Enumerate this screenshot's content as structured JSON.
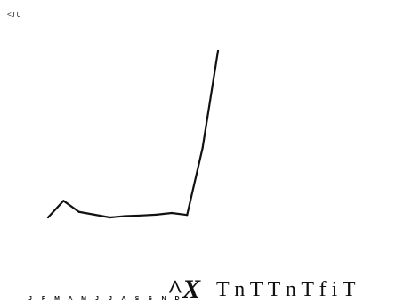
{
  "chart_data": {
    "type": "line",
    "title": "",
    "corner_label": "<J 0",
    "categories": [
      "J",
      "F",
      "M",
      "A",
      "M",
      "J",
      "J",
      "A",
      "S",
      "6",
      "N",
      "D"
    ],
    "series": [
      {
        "values": [
          60,
          66,
          62,
          61,
          60,
          60.5,
          60.7,
          61,
          61.6,
          60.9,
          85,
          120
        ]
      }
    ],
    "grid": false,
    "legend": "none",
    "line_color": "#111111"
  },
  "decor": {
    "glyph": "^X",
    "text": "T n T T n T f i T"
  }
}
